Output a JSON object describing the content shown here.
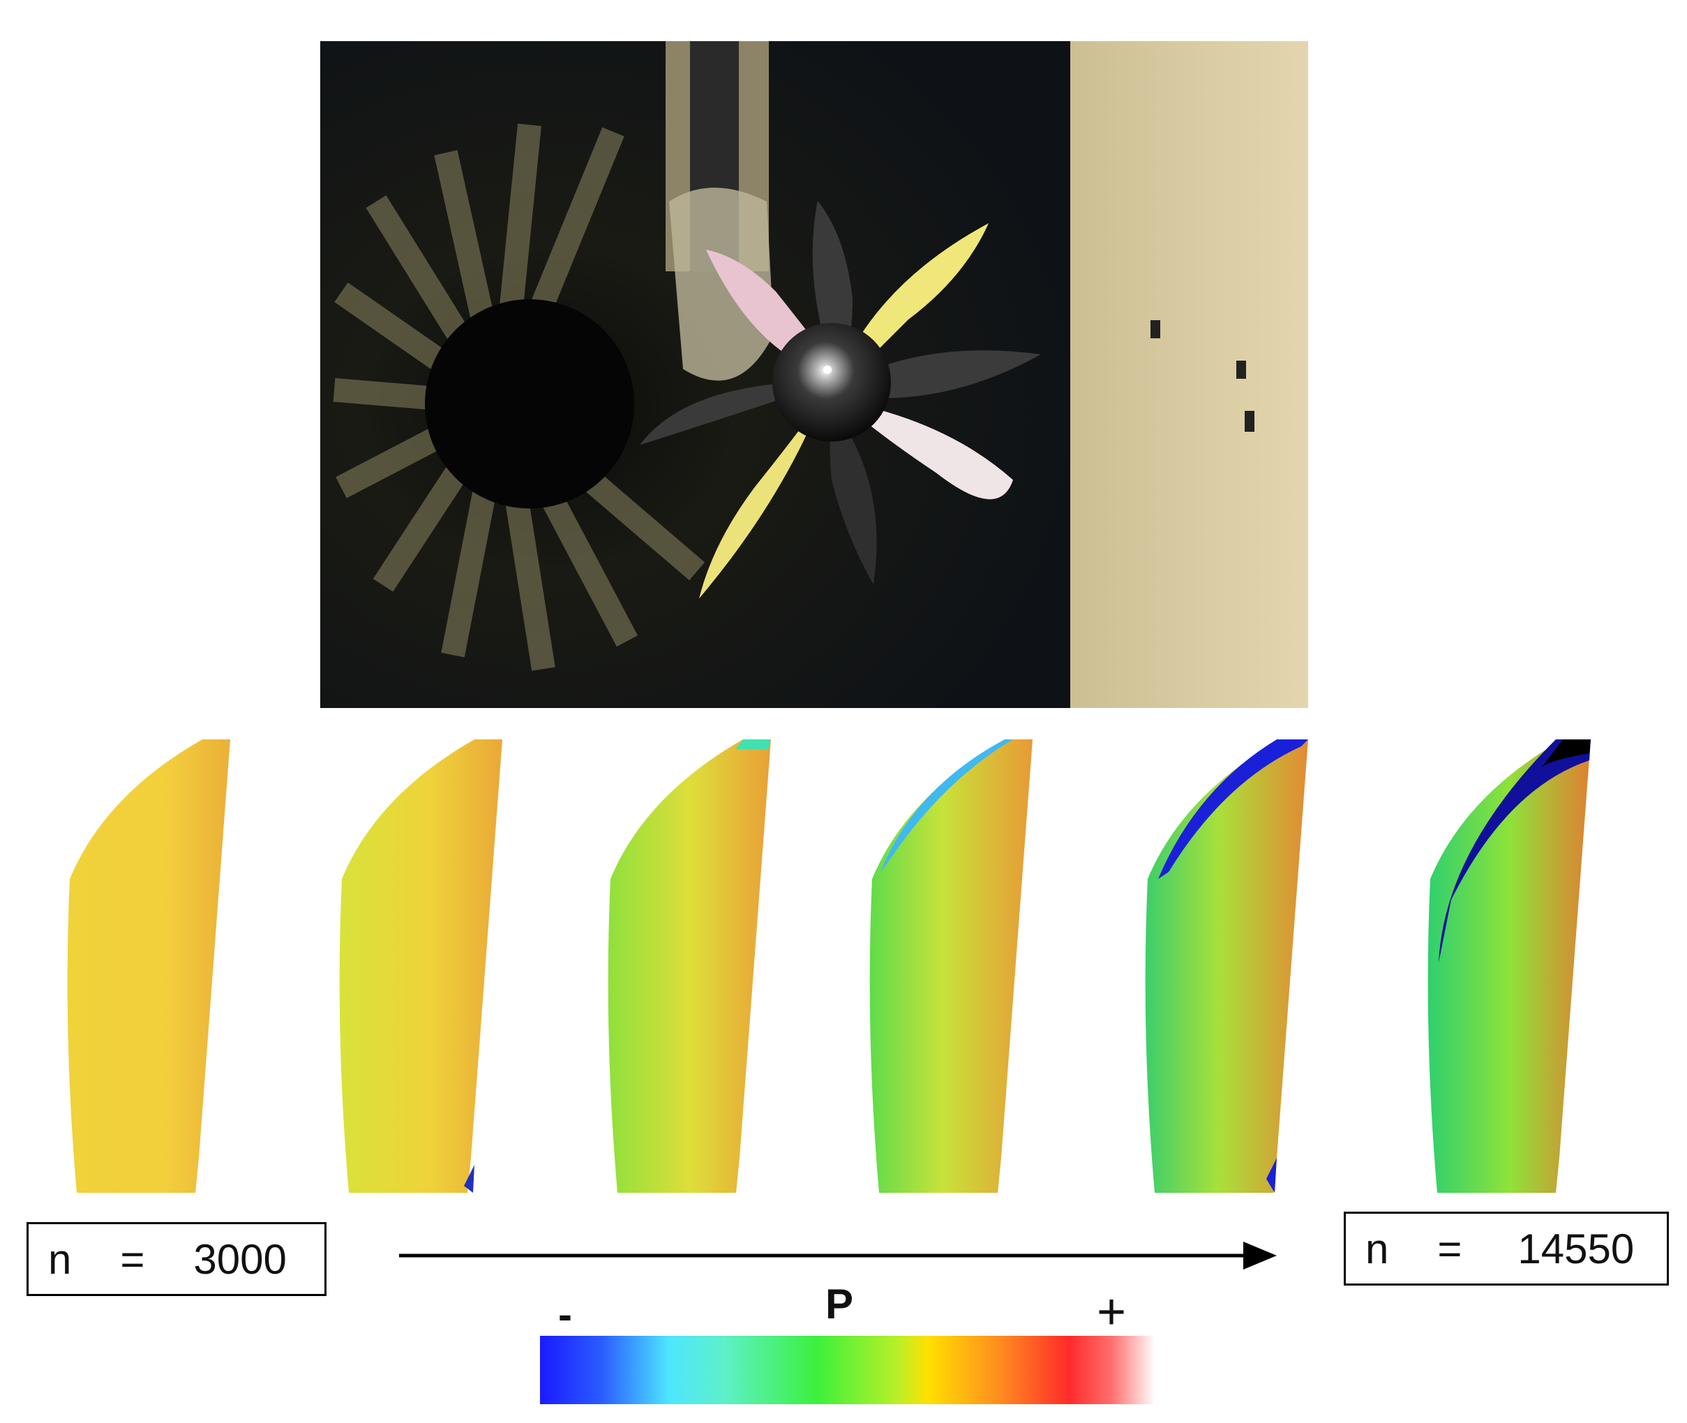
{
  "labels": {
    "n_start": {
      "symbol": "n",
      "equals": "=",
      "value": "3000"
    },
    "n_end": {
      "symbol": "n",
      "equals": "=",
      "value": "14550"
    }
  },
  "colorbar": {
    "variable": "P",
    "min_label": "-",
    "max_label": "+"
  },
  "blade_maps_count": 6
}
